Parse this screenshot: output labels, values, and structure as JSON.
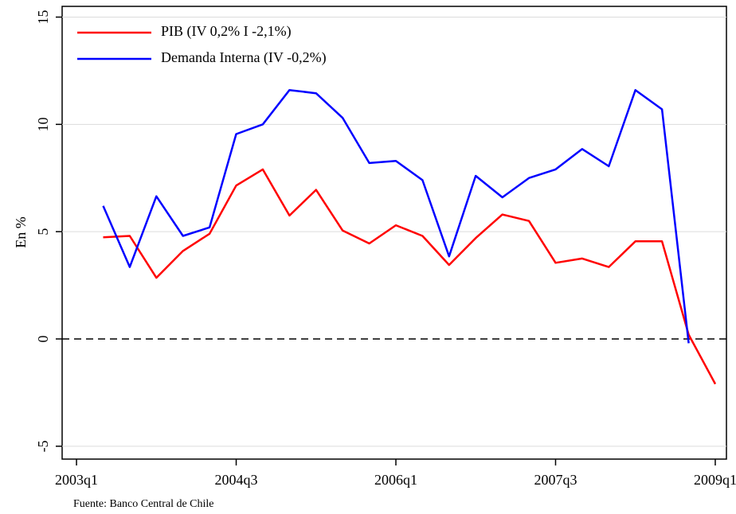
{
  "chart_data": {
    "type": "line",
    "y_label": "En %",
    "source": "Fuente: Banco Central de Chile",
    "categories": [
      "2003q1",
      null,
      null,
      null,
      null,
      null,
      "2004q3",
      null,
      null,
      null,
      null,
      null,
      "2006q1",
      null,
      null,
      null,
      null,
      null,
      "2007q3",
      null,
      null,
      null,
      null,
      null,
      "2009q1"
    ],
    "series": [
      {
        "name": "PIB (IV 0,2% I -2,1%)",
        "color": "#ff0000",
        "values": [
          null,
          4.74,
          4.8,
          2.85,
          4.1,
          4.9,
          7.15,
          7.9,
          5.75,
          6.95,
          5.05,
          4.45,
          5.3,
          4.8,
          3.45,
          4.7,
          5.8,
          5.5,
          3.55,
          3.75,
          3.35,
          4.55,
          4.55,
          0.2,
          -2.1
        ]
      },
      {
        "name": "Demanda Interna (IV -0,2%)",
        "color": "#0000ff",
        "values": [
          null,
          6.2,
          3.35,
          6.65,
          4.8,
          5.2,
          9.55,
          10.0,
          11.6,
          11.45,
          10.3,
          8.2,
          8.3,
          7.4,
          3.85,
          7.6,
          6.6,
          7.5,
          7.9,
          8.85,
          8.05,
          11.6,
          10.7,
          -0.2,
          null
        ]
      }
    ],
    "ylim": [
      -5.6,
      15.5
    ],
    "yticks": [
      -5,
      0,
      5,
      10,
      15
    ],
    "grid": true,
    "hline": 0,
    "legend": "top-left"
  }
}
